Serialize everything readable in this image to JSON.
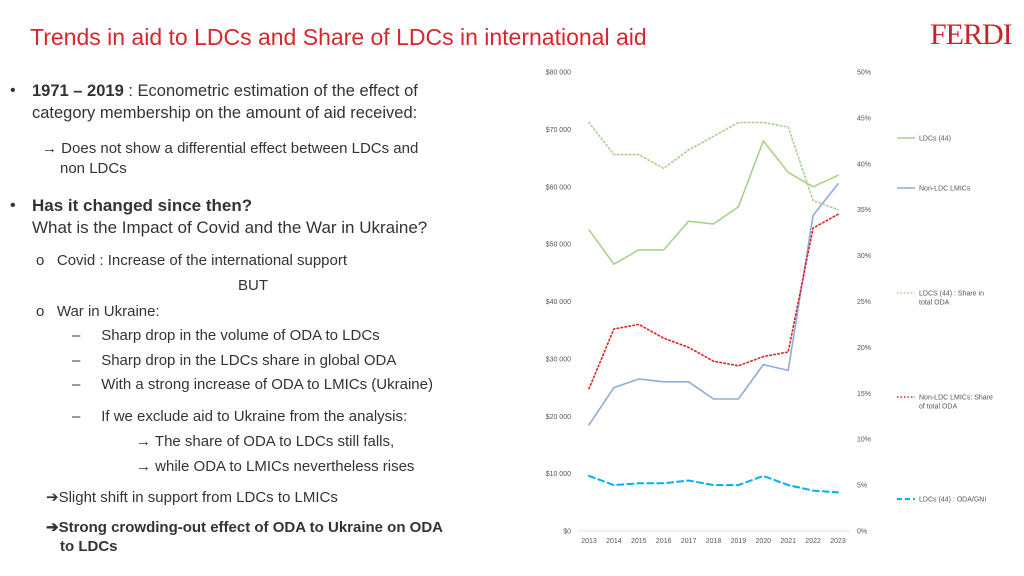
{
  "header": {
    "title": "Trends in aid to LDCs and Share of LDCs in international aid",
    "logo": "FERDI"
  },
  "text": {
    "b1_bold": "1971 – 2019",
    "b1_rest": " : Econometric estimation of the effect of",
    "b1_line2": "category membership on the amount of aid received:",
    "arrow1": "Does not show a differential effect between LDCs and",
    "arrow1_l2": "non LDCs",
    "b2_bold": "Has it changed since then?",
    "b2_line2": "What is the Impact of Covid and the War in Ukraine?",
    "covid": "Covid : Increase of the international support",
    "but": "BUT",
    "war": "War in Ukraine:",
    "d1": "Sharp drop in the volume of ODA to LDCs",
    "d2": "Sharp drop in the LDCs share in global ODA",
    "d3": "With a strong increase of ODA to LMICs (Ukraine)",
    "d4": "If we exclude aid to Ukraine from the analysis:",
    "a2": "The share of ODA to LDCs still falls,",
    "a3": "while ODA to LMICs nevertheless rises",
    "c1": "Slight shift in support from LDCs to LMICs",
    "c2_l1": "Strong crowding-out effect of ODA to Ukraine on ODA",
    "c2_l2": "to LDCs"
  },
  "chart_data": {
    "type": "line",
    "x": [
      2013,
      2014,
      2015,
      2016,
      2017,
      2018,
      2019,
      2020,
      2021,
      2022,
      2023
    ],
    "left_axis": {
      "ticks": [
        "$0",
        "$10 000",
        "$20 000",
        "$30 000",
        "$40 000",
        "$50 000",
        "$60 000",
        "$70 000",
        "$80 000"
      ],
      "ylim": [
        0,
        80000
      ]
    },
    "right_axis": {
      "ticks": [
        "0%",
        "5%",
        "10%",
        "15%",
        "20%",
        "25%",
        "30%",
        "35%",
        "40%",
        "45%",
        "50%"
      ],
      "ylim": [
        0,
        50
      ]
    },
    "series": [
      {
        "name": "LDCs (44)",
        "axis": "left",
        "style": "solid",
        "color": "#a9d18e",
        "values": [
          52500,
          46500,
          49000,
          49000,
          54000,
          53500,
          56500,
          68000,
          62500,
          60000,
          62000
        ]
      },
      {
        "name": "Non-LDC LMICs",
        "axis": "left",
        "style": "solid",
        "color": "#8faadc",
        "values": [
          18500,
          25000,
          26500,
          26000,
          26000,
          23000,
          23000,
          29000,
          28000,
          55000,
          60500
        ]
      },
      {
        "name": "LDCS (44) : Share in total ODA",
        "axis": "right",
        "style": "dotted",
        "color": "#a9d18e",
        "values": [
          44.5,
          41.0,
          41.0,
          39.5,
          41.5,
          43.0,
          44.5,
          44.5,
          44.0,
          36.0,
          35.0
        ]
      },
      {
        "name": "Non-LDC LMICs: Share of total ODA",
        "axis": "right",
        "style": "dotted",
        "color": "#e02020",
        "values": [
          15.5,
          22.0,
          22.5,
          21.0,
          20.0,
          18.5,
          18.0,
          19.0,
          19.5,
          33.0,
          34.5
        ]
      },
      {
        "name": "LDCs (44) : ODA/GNI",
        "axis": "right",
        "style": "dashed",
        "color": "#00b0f0",
        "values": [
          6.0,
          5.0,
          5.2,
          5.2,
          5.5,
          5.0,
          5.0,
          6.0,
          5.0,
          4.4,
          4.2
        ]
      }
    ]
  }
}
